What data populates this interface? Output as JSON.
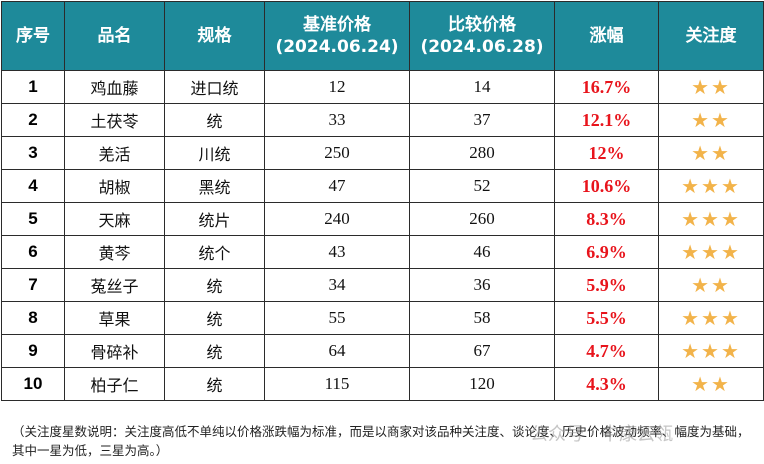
{
  "table": {
    "headers": {
      "no": "序号",
      "name": "品名",
      "spec": "规格",
      "base_title": "基准价格",
      "base_date": "(2024.06.24)",
      "cmp_title": "比较价格",
      "cmp_date": "(2024.06.28)",
      "change": "涨幅",
      "attention": "关注度"
    },
    "rows": [
      {
        "no": "1",
        "name": "鸡血藤",
        "spec": "进口统",
        "base": "12",
        "cmp": "14",
        "change": "16.7%",
        "stars": "★★"
      },
      {
        "no": "2",
        "name": "土茯苓",
        "spec": "统",
        "base": "33",
        "cmp": "37",
        "change": "12.1%",
        "stars": "★★"
      },
      {
        "no": "3",
        "name": "羌活",
        "spec": "川统",
        "base": "250",
        "cmp": "280",
        "change": "12%",
        "stars": "★★"
      },
      {
        "no": "4",
        "name": "胡椒",
        "spec": "黑统",
        "base": "47",
        "cmp": "52",
        "change": "10.6%",
        "stars": "★★★"
      },
      {
        "no": "5",
        "name": "天麻",
        "spec": "统片",
        "base": "240",
        "cmp": "260",
        "change": "8.3%",
        "stars": "★★★"
      },
      {
        "no": "6",
        "name": "黄芩",
        "spec": "统个",
        "base": "43",
        "cmp": "46",
        "change": "6.9%",
        "stars": "★★★"
      },
      {
        "no": "7",
        "name": "菟丝子",
        "spec": "统",
        "base": "34",
        "cmp": "36",
        "change": "5.9%",
        "stars": "★★"
      },
      {
        "no": "8",
        "name": "草果",
        "spec": "统",
        "base": "55",
        "cmp": "58",
        "change": "5.5%",
        "stars": "★★★"
      },
      {
        "no": "9",
        "name": "骨碎补",
        "spec": "统",
        "base": "64",
        "cmp": "67",
        "change": "4.7%",
        "stars": "★★★"
      },
      {
        "no": "10",
        "name": "柏子仁",
        "spec": "统",
        "base": "115",
        "cmp": "120",
        "change": "4.3%",
        "stars": "★★"
      }
    ]
  },
  "note": "（关注度星数说明：关注度高低不单纯以价格涨跌幅为标准，而是以商家对该品种关注度、谈论度、历史价格波动频率、幅度为基础，其中一星为低，三星为高。）",
  "watermark": "公众号 · 中康云瓴",
  "colors": {
    "header_bg": "#1e8a9a",
    "change_text": "#e8141c",
    "star": "#f2b34a"
  }
}
